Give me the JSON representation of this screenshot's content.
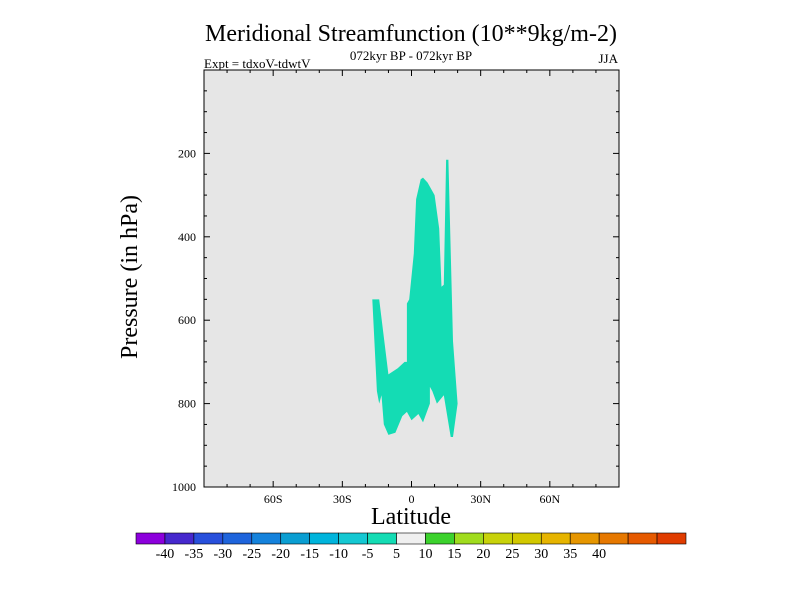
{
  "chart_data": {
    "type": "contour",
    "title": "Meridional Streamfunction (10**9kg/m-2)",
    "subtitle": "072kyr BP - 072kyr BP",
    "experiment": "Expt = tdxoV-tdwtV",
    "season": "JJA",
    "xlabel": "Latitude",
    "ylabel": "Pressure (in hPa)",
    "xlim": [
      -90,
      90
    ],
    "ylim": [
      1000,
      0
    ],
    "x_ticks": [
      {
        "value": -60,
        "label": "60S"
      },
      {
        "value": -30,
        "label": "30S"
      },
      {
        "value": 0,
        "label": "0"
      },
      {
        "value": 30,
        "label": "30N"
      },
      {
        "value": 60,
        "label": "60N"
      }
    ],
    "y_ticks": [
      {
        "value": 200,
        "label": "200"
      },
      {
        "value": 400,
        "label": "400"
      },
      {
        "value": 600,
        "label": "600"
      },
      {
        "value": 800,
        "label": "800"
      },
      {
        "value": 1000,
        "label": "1000"
      }
    ],
    "background_color": "#e6e6e6",
    "regions": [
      {
        "level": "-10 to -5",
        "color": "#14dcb4",
        "outline": [
          [
            -17,
            550
          ],
          [
            -14,
            550
          ],
          [
            -10,
            730
          ],
          [
            -6,
            715
          ],
          [
            -3,
            700
          ],
          [
            -2,
            700
          ],
          [
            -2,
            560
          ],
          [
            -1,
            550
          ],
          [
            1,
            440
          ],
          [
            2,
            310
          ],
          [
            4,
            262
          ],
          [
            5,
            258
          ],
          [
            7,
            270
          ],
          [
            10,
            300
          ],
          [
            12,
            380
          ],
          [
            13,
            520
          ],
          [
            14,
            515
          ],
          [
            15,
            215
          ],
          [
            16,
            215
          ],
          [
            18,
            650
          ],
          [
            20,
            800
          ],
          [
            18,
            880
          ],
          [
            17,
            880
          ],
          [
            14,
            780
          ],
          [
            11,
            800
          ],
          [
            9,
            770
          ],
          [
            8,
            760
          ],
          [
            8,
            800
          ],
          [
            5,
            845
          ],
          [
            3,
            825
          ],
          [
            0,
            840
          ],
          [
            -2,
            820
          ],
          [
            -4,
            830
          ],
          [
            -7,
            870
          ],
          [
            -10,
            875
          ],
          [
            -12,
            850
          ],
          [
            -13,
            780
          ],
          [
            -14,
            800
          ],
          [
            -15,
            770
          ]
        ]
      }
    ],
    "colorbar": {
      "colors": [
        "#8c00dc",
        "#4628cd",
        "#2850dc",
        "#1e64dc",
        "#1482dc",
        "#0a9ed2",
        "#00b4dc",
        "#14c8d2",
        "#14dcb4",
        "#f0f0f0",
        "#3cd22d",
        "#a0dc1e",
        "#c8d20a",
        "#d2c800",
        "#e6b400",
        "#e69600",
        "#e67800",
        "#e65a00",
        "#e03c00"
      ],
      "labels": [
        "-40",
        "-35",
        "-30",
        "-25",
        "-20",
        "-15",
        "-10",
        "-5",
        "5",
        "10",
        "15",
        "20",
        "25",
        "30",
        "35",
        "40"
      ]
    }
  }
}
